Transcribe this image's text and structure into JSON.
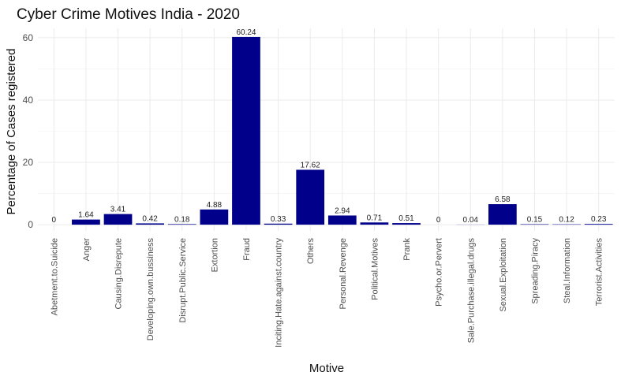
{
  "chart_data": {
    "type": "bar",
    "title": "Cyber Crime Motives India - 2020",
    "xlabel": "Motive",
    "ylabel": "Percentage of Cases registered",
    "ylim": [
      -2,
      63
    ],
    "yticks": [
      0,
      20,
      40,
      60
    ],
    "grid": true,
    "bar_color": "#00008B",
    "categories": [
      "Abetment.to.Suicide",
      "Anger",
      "Causing.Disrepute",
      "Developing.own.bussiness",
      "Disrupt.Public.Service",
      "Extortion",
      "Fraud",
      "Inciting.Hate.against.country",
      "Others",
      "Personal.Revenge",
      "Political.Motives",
      "Prank",
      "Psycho.or.Pervert",
      "Sale.Purchase.illegal.drugs",
      "Sexual.Exploitation",
      "Spreading.Piracy",
      "Steal.Information",
      "Terrorist.Activities"
    ],
    "values": [
      0,
      1.64,
      3.41,
      0.42,
      0.18,
      4.88,
      60.24,
      0.33,
      17.62,
      2.94,
      0.71,
      0.51,
      0,
      0.04,
      6.58,
      0.15,
      0.12,
      0.23
    ],
    "value_labels": [
      "0",
      "1.64",
      "3.41",
      "0.42",
      "0.18",
      "4.88",
      "60.24",
      "0.33",
      "17.62",
      "2.94",
      "0.71",
      "0.51",
      "0",
      "0.04",
      "6.58",
      "0.15",
      "0.12",
      "0.23"
    ]
  }
}
